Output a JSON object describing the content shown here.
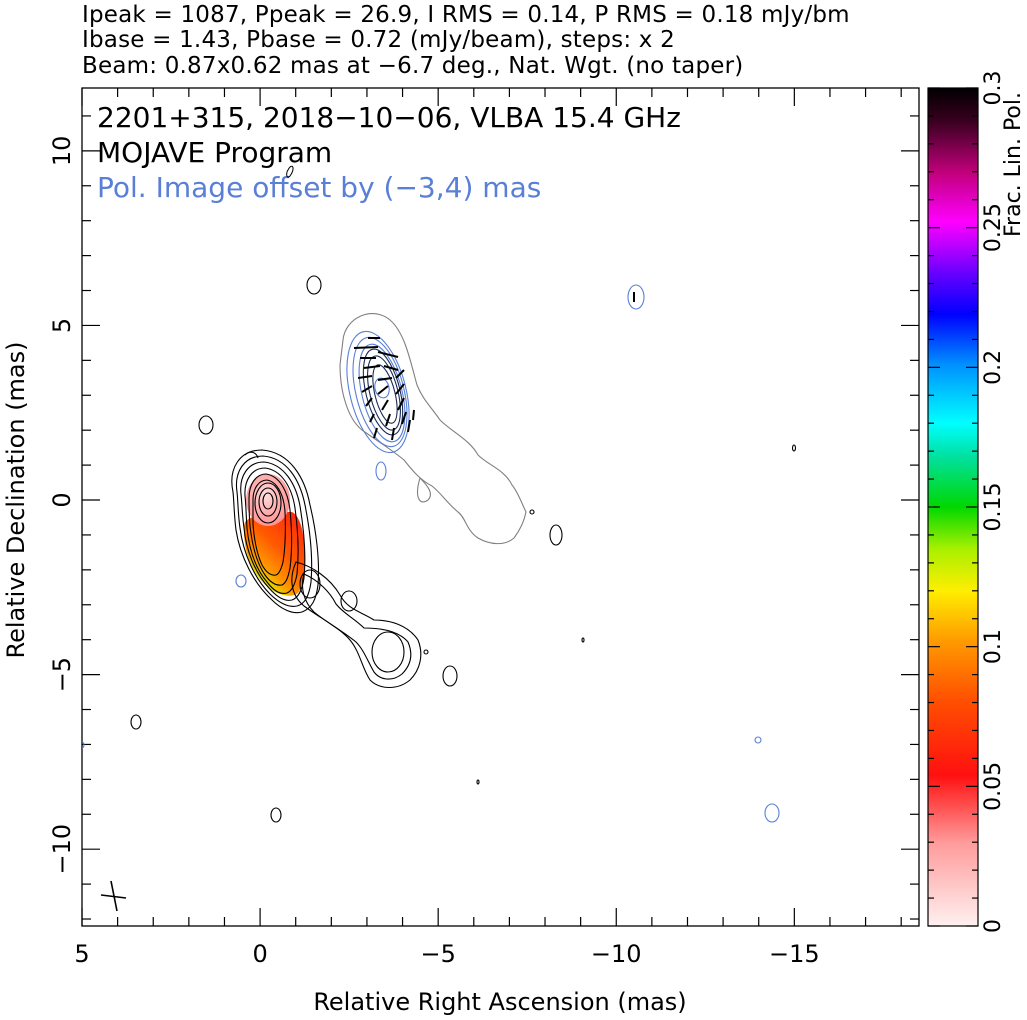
{
  "header": {
    "line1": "Ipeak = 1087, Ppeak = 26.9, I RMS = 0.14, P RMS = 0.18 mJy/bm",
    "line2": "Ibase = 1.43, Pbase = 0.72 (mJy/beam), steps: x 2",
    "line3": "Beam: 0.87x0.62 mas at −6.7 deg., Nat. Wgt. (no taper)"
  },
  "annotations": {
    "source": "2201+315, 2018−10−06, VLBA 15.4 GHz",
    "program": "MOJAVE Program",
    "offset_note": "Pol. Image offset by (−3,4) mas"
  },
  "colors": {
    "total_intensity_contours": "#000000",
    "pol_contours": "#5a7fd6",
    "faint_contour": "#808080",
    "offset_note": "#5a7fd6"
  },
  "chart_data": {
    "type": "contour",
    "xlabel": "Relative Right Ascension (mas)",
    "ylabel": "Relative Declination (mas)",
    "xlim": [
      5,
      -18.5
    ],
    "ylim": [
      -12.2,
      11.8
    ],
    "xticks": [
      5,
      0,
      -5,
      -10,
      -15
    ],
    "xtick_labels": [
      "5",
      "0",
      "−5",
      "−10",
      "−15"
    ],
    "yticks": [
      10,
      5,
      0,
      -5,
      -10
    ],
    "ytick_labels": [
      "10",
      "5",
      "0",
      "−5",
      "−10"
    ],
    "polarization_offset_mas": [
      -3,
      4
    ],
    "colorbar": {
      "label": "Frac. Lin. Pol.",
      "range": [
        0,
        0.3
      ],
      "ticks": [
        0,
        0.05,
        0.1,
        0.15,
        0.2,
        0.25,
        0.3
      ],
      "tick_labels": [
        "0",
        "0.05",
        "0.1",
        "0.15",
        "0.2",
        "0.25",
        "0.3"
      ]
    },
    "total_intensity": {
      "peak_mJy_per_beam": 1087,
      "base_mJy_per_beam": 1.43,
      "rms": 0.14,
      "contour_step_factor": 2,
      "core_position_mas": [
        0,
        0
      ]
    },
    "polarized_intensity": {
      "peak_mJy_per_beam": 26.9,
      "base_mJy_per_beam": 0.72,
      "rms": 0.18
    },
    "beam": {
      "major_mas": 0.87,
      "minor_mas": 0.62,
      "pa_deg": -6.7
    }
  }
}
